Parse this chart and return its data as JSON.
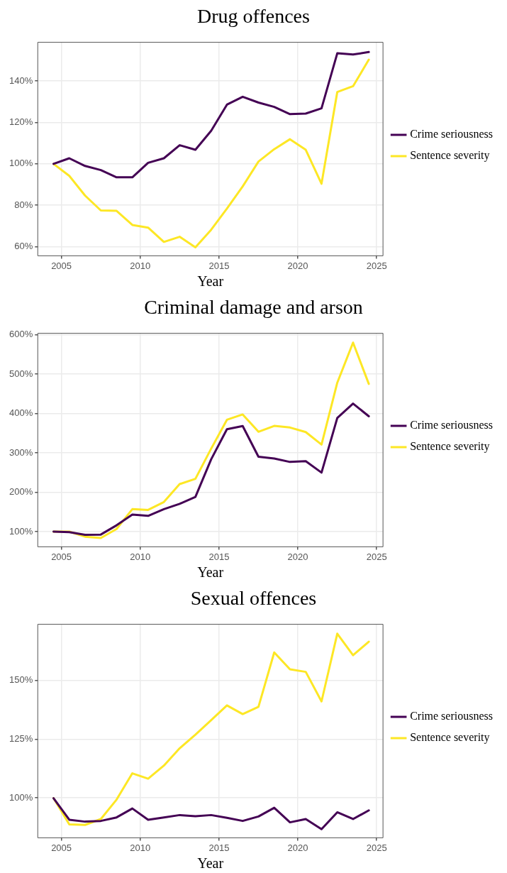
{
  "chart_data": [
    {
      "type": "line",
      "title": "Drug offences",
      "xlabel": "Year",
      "legend": "right",
      "grid": true,
      "line_style": "solid",
      "x": [
        2004.5,
        2005.5,
        2006.5,
        2007.5,
        2008.5,
        2009.5,
        2010.5,
        2011.5,
        2012.5,
        2013.5,
        2014.5,
        2015.5,
        2016.5,
        2017.5,
        2018.5,
        2019.5,
        2020.5,
        2021.5,
        2022.5,
        2023.5,
        2024.5
      ],
      "xlim": [
        2003.5,
        2025.4
      ],
      "xticks": [
        2005,
        2010,
        2015,
        2020,
        2025
      ],
      "ylim": [
        55.6,
        158.7
      ],
      "yticks": [
        {
          "value": 60,
          "label": "60%"
        },
        {
          "value": 80,
          "label": "80%"
        },
        {
          "value": 100,
          "label": "100%"
        },
        {
          "value": 120,
          "label": "120%"
        },
        {
          "value": 140,
          "label": "140%"
        }
      ],
      "series": [
        {
          "name": "Crime seriousness",
          "color": "#440154",
          "values": [
            100,
            102.7,
            99,
            97,
            93.5,
            93.5,
            100.5,
            102.7,
            109,
            106.8,
            116,
            128.6,
            132.4,
            129.6,
            127.5,
            124,
            124.3,
            126.8,
            153.4,
            152.8,
            154
          ]
        },
        {
          "name": "Sentence severity",
          "color": "#fde725",
          "values": [
            100,
            94.2,
            84.7,
            77.5,
            77.3,
            70.5,
            69.2,
            62.3,
            64.8,
            59.7,
            68.2,
            78.4,
            89.1,
            101.1,
            107.1,
            111.9,
            106.8,
            90.4,
            134.7,
            137.5,
            150.3
          ]
        }
      ]
    },
    {
      "type": "line",
      "title": "Criminal damage and arson",
      "xlabel": "Year",
      "legend": "right",
      "grid": true,
      "line_style": "solid",
      "x": [
        2004.5,
        2005.5,
        2006.5,
        2007.5,
        2008.5,
        2009.5,
        2010.5,
        2011.5,
        2012.5,
        2013.5,
        2014.5,
        2015.5,
        2016.5,
        2017.5,
        2018.5,
        2019.5,
        2020.5,
        2021.5,
        2022.5,
        2023.5,
        2024.5
      ],
      "xlim": [
        2003.5,
        2025.4
      ],
      "xticks": [
        2005,
        2010,
        2015,
        2020,
        2025
      ],
      "ylim": [
        61.4,
        603.4
      ],
      "yticks": [
        {
          "value": 100,
          "label": "100%"
        },
        {
          "value": 200,
          "label": "200%"
        },
        {
          "value": 300,
          "label": "300%"
        },
        {
          "value": 400,
          "label": "400%"
        },
        {
          "value": 500,
          "label": "500%"
        },
        {
          "value": 600,
          "label": "600%"
        }
      ],
      "series": [
        {
          "name": "Crime seriousness",
          "color": "#440154",
          "values": [
            100,
            98.6,
            92,
            92.5,
            116,
            143,
            140,
            157,
            170.5,
            188,
            283.6,
            360,
            368,
            290,
            285.6,
            276.8,
            278.9,
            249.7,
            388.6,
            425,
            392.7
          ]
        },
        {
          "name": "Sentence severity",
          "color": "#fde725",
          "values": [
            100,
            100,
            87,
            83.7,
            106.8,
            157,
            155,
            175,
            220.6,
            234,
            310.6,
            383.9,
            397.4,
            353.4,
            368.3,
            364.2,
            352.7,
            320.9,
            478,
            579.7,
            475
          ]
        }
      ]
    },
    {
      "type": "line",
      "title": "Sexual offences",
      "xlabel": "Year",
      "legend": "right",
      "grid": true,
      "line_style": "solid",
      "x": [
        2004.5,
        2005.5,
        2006.5,
        2007.5,
        2008.5,
        2009.5,
        2010.5,
        2011.5,
        2012.5,
        2013.5,
        2014.5,
        2015.5,
        2016.5,
        2017.5,
        2018.5,
        2019.5,
        2020.5,
        2021.5,
        2022.5,
        2023.5,
        2024.5
      ],
      "xlim": [
        2003.5,
        2025.4
      ],
      "xticks": [
        2005,
        2010,
        2015,
        2020,
        2025
      ],
      "ylim": [
        82.9,
        174
      ],
      "yticks": [
        {
          "value": 100,
          "label": "100%"
        },
        {
          "value": 125,
          "label": "125%"
        },
        {
          "value": 150,
          "label": "150%"
        }
      ],
      "series": [
        {
          "name": "Crime seriousness",
          "color": "#440154",
          "values": [
            99.8,
            90.6,
            89.8,
            90.1,
            91.6,
            95.4,
            90.6,
            91.6,
            92.6,
            92.1,
            92.6,
            91.4,
            90.1,
            92,
            95.7,
            89.5,
            90.9,
            86.6,
            93.8,
            90.9,
            94.6
          ]
        },
        {
          "name": "Sentence severity",
          "color": "#fde725",
          "values": [
            99.8,
            88.6,
            88.4,
            90.9,
            99.2,
            110.4,
            108.1,
            113.7,
            121.1,
            126.9,
            133.1,
            139.4,
            135.7,
            138.8,
            162,
            154.8,
            153.7,
            141.1,
            170,
            160.8,
            166.6
          ]
        }
      ]
    }
  ]
}
